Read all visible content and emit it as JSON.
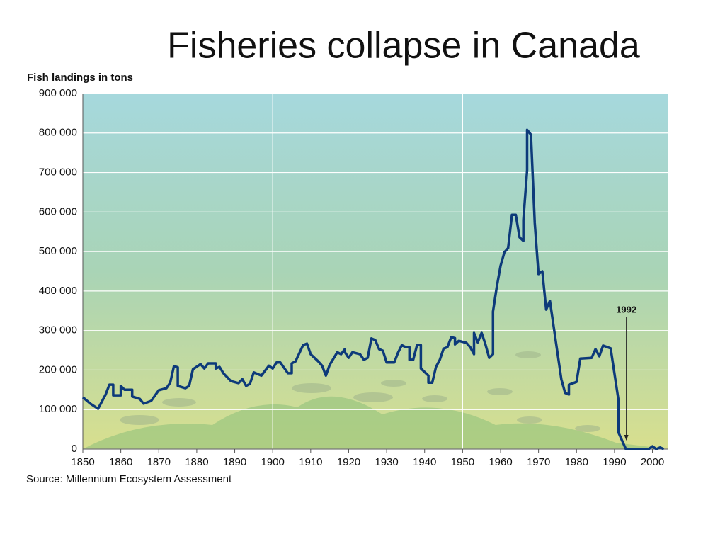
{
  "chart_data": {
    "type": "line",
    "title": "Fisheries collapse in Canada",
    "y_label": "Fish landings in tons",
    "source": "Source: Millennium Ecosystem Assessment",
    "annotations": [
      {
        "text": "1992",
        "x": 1992
      }
    ],
    "xlim": [
      1850,
      2004
    ],
    "xticks": [
      1850,
      1860,
      1870,
      1880,
      1890,
      1900,
      1910,
      1920,
      1930,
      1940,
      1950,
      1960,
      1970,
      1980,
      1990,
      2000
    ],
    "ylim": [
      0,
      900000
    ],
    "yticks": [
      {
        "value": 0,
        "label": "0"
      },
      {
        "value": 100000,
        "label": "100 000"
      },
      {
        "value": 200000,
        "label": "200 000"
      },
      {
        "value": 300000,
        "label": "300 000"
      },
      {
        "value": 400000,
        "label": "400 000"
      },
      {
        "value": 500000,
        "label": "500 000"
      },
      {
        "value": 600000,
        "label": "600 000"
      },
      {
        "value": 700000,
        "label": "700 000"
      },
      {
        "value": 800000,
        "label": "800 000"
      },
      {
        "value": 900000,
        "label": "900 000"
      }
    ],
    "x_grid": [
      1900,
      1950
    ],
    "grid": true,
    "series": [
      {
        "color": "#0d3a7a",
        "x": [
          1850,
          1852,
          1854,
          1856,
          1857,
          1858,
          1858,
          1860,
          1860,
          1861,
          1863,
          1863,
          1865,
          1866,
          1868,
          1870,
          1872,
          1873,
          1874,
          1875,
          1875,
          1877,
          1878,
          1879,
          1881,
          1882,
          1883,
          1885,
          1885,
          1886,
          1887,
          1889,
          1891,
          1892,
          1893,
          1894,
          1895,
          1897,
          1899,
          1900,
          1901,
          1902,
          1904,
          1905,
          1905,
          1906,
          1908,
          1909,
          1910,
          1912,
          1913,
          1914,
          1915,
          1917,
          1918,
          1919,
          1919,
          1920,
          1921,
          1923,
          1924,
          1925,
          1926,
          1927,
          1928,
          1929,
          1930,
          1932,
          1933,
          1934,
          1935,
          1936,
          1936,
          1937,
          1938,
          1939,
          1939,
          1941,
          1941,
          1942,
          1943,
          1944,
          1945,
          1946,
          1947,
          1948,
          1948,
          1949,
          1951,
          1952,
          1953,
          1953,
          1954,
          1955,
          1956,
          1957,
          1958,
          1958,
          1959,
          1960,
          1961,
          1962,
          1963,
          1964,
          1965,
          1966,
          1966,
          1967,
          1967,
          1968,
          1969,
          1970,
          1971,
          1972,
          1973,
          1976,
          1977,
          1978,
          1978,
          1980,
          1981,
          1984,
          1985,
          1986,
          1987,
          1989,
          1991,
          1991,
          1993,
          1999,
          2000,
          2001,
          2002,
          2003
        ],
        "values": [
          131000,
          115000,
          102000,
          138000,
          163000,
          163000,
          136000,
          136000,
          160000,
          150000,
          150000,
          133000,
          127000,
          115000,
          122000,
          149000,
          154000,
          168000,
          210000,
          207000,
          160000,
          154000,
          160000,
          202000,
          215000,
          204000,
          217000,
          217000,
          204000,
          208000,
          192000,
          172000,
          167000,
          177000,
          160000,
          165000,
          194000,
          186000,
          211000,
          204000,
          219000,
          219000,
          192000,
          192000,
          217000,
          222000,
          263000,
          267000,
          240000,
          222000,
          211000,
          186000,
          213000,
          245000,
          240000,
          253000,
          245000,
          231000,
          245000,
          240000,
          226000,
          231000,
          280000,
          276000,
          253000,
          249000,
          219000,
          219000,
          244000,
          263000,
          258000,
          258000,
          226000,
          226000,
          263000,
          263000,
          204000,
          186000,
          168000,
          168000,
          208000,
          226000,
          254000,
          258000,
          283000,
          281000,
          265000,
          274000,
          269000,
          258000,
          240000,
          294000,
          270000,
          294000,
          266000,
          231000,
          240000,
          348000,
          410000,
          464000,
          498000,
          509000,
          593000,
          593000,
          536000,
          527000,
          580000,
          706000,
          808000,
          796000,
          572000,
          443000,
          450000,
          353000,
          375000,
          177000,
          142000,
          138000,
          163000,
          170000,
          229000,
          231000,
          253000,
          235000,
          262000,
          255000,
          127000,
          43000,
          0,
          0,
          7000,
          0,
          4000,
          0
        ]
      }
    ]
  }
}
